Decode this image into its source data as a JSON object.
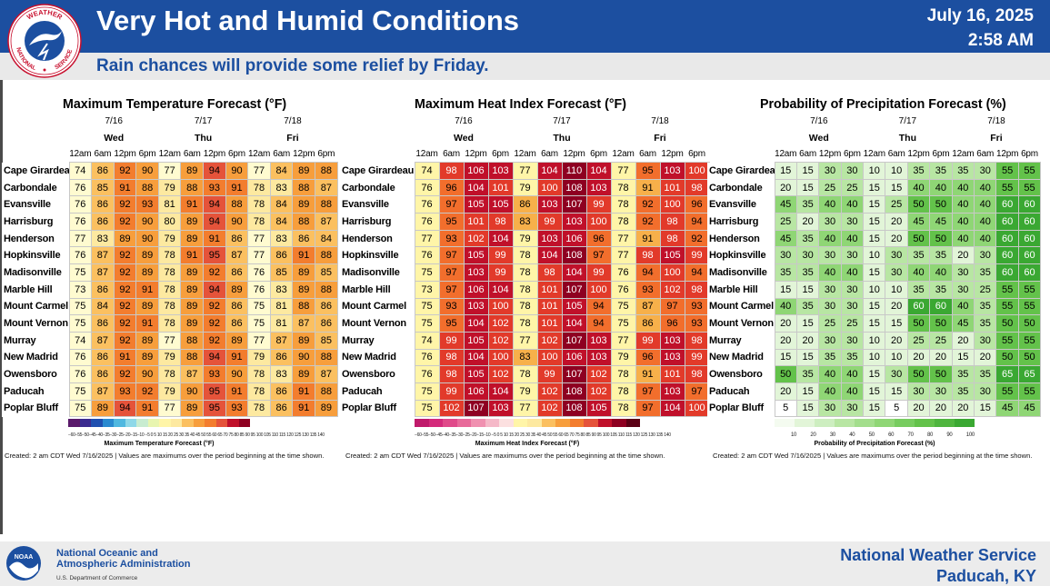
{
  "header": {
    "title": "Very Hot and Humid Conditions",
    "date": "July 16, 2025",
    "time": "2:58 AM",
    "subtitle": "Rain chances will provide some relief by Friday."
  },
  "logo": {
    "top_text": "WEATHER",
    "left_text": "NATIONAL",
    "right_text": "SERVICE"
  },
  "days": [
    {
      "date": "7/16",
      "weekday": "Wed"
    },
    {
      "date": "7/17",
      "weekday": "Thu"
    },
    {
      "date": "7/18",
      "weekday": "Fri"
    }
  ],
  "hours": [
    "12am",
    "6am",
    "12pm",
    "6pm"
  ],
  "cities": [
    "Cape Girardeau",
    "Carbondale",
    "Evansville",
    "Harrisburg",
    "Henderson",
    "Hopkinsville",
    "Madisonville",
    "Marble Hill",
    "Mount Carmel",
    "Mount Vernon",
    "Murray",
    "New Madrid",
    "Owensboro",
    "Paducah",
    "Poplar Bluff"
  ],
  "panels": {
    "temp": {
      "title": "Maximum Temperature Forecast (°F)",
      "colorbar_label": "Maximum Temperature Forecast (°F)",
      "colorbar_ticks": "−60−55−50−45−40−35−30−25−20−15−10 −5 0 5 10 15 20 25 30 35 40 45 50 55 60 65 70 75 80 85 90 95 100 105 110 115 120 125 130 135 140",
      "values": [
        [
          74,
          86,
          92,
          90,
          77,
          89,
          94,
          90,
          77,
          84,
          89,
          88
        ],
        [
          76,
          85,
          91,
          88,
          79,
          88,
          93,
          91,
          78,
          83,
          88,
          87
        ],
        [
          76,
          86,
          92,
          93,
          81,
          91,
          94,
          88,
          78,
          84,
          89,
          88
        ],
        [
          76,
          86,
          92,
          90,
          80,
          89,
          94,
          90,
          78,
          84,
          88,
          87
        ],
        [
          77,
          83,
          89,
          90,
          79,
          89,
          91,
          86,
          77,
          83,
          86,
          84
        ],
        [
          76,
          87,
          92,
          89,
          78,
          91,
          95,
          87,
          77,
          86,
          91,
          88
        ],
        [
          75,
          87,
          92,
          89,
          78,
          89,
          92,
          86,
          76,
          85,
          89,
          85
        ],
        [
          73,
          86,
          92,
          91,
          78,
          89,
          94,
          89,
          76,
          83,
          89,
          88
        ],
        [
          75,
          84,
          92,
          89,
          78,
          89,
          92,
          86,
          75,
          81,
          88,
          86
        ],
        [
          75,
          86,
          92,
          91,
          78,
          89,
          92,
          86,
          75,
          81,
          87,
          86
        ],
        [
          74,
          87,
          92,
          89,
          77,
          88,
          92,
          89,
          77,
          87,
          89,
          85
        ],
        [
          76,
          86,
          91,
          89,
          79,
          88,
          94,
          91,
          79,
          86,
          90,
          88
        ],
        [
          76,
          86,
          92,
          90,
          78,
          87,
          93,
          90,
          78,
          83,
          89,
          87
        ],
        [
          75,
          87,
          93,
          92,
          79,
          90,
          95,
          91,
          78,
          86,
          91,
          88
        ],
        [
          75,
          89,
          94,
          91,
          77,
          89,
          95,
          93,
          78,
          86,
          91,
          89
        ]
      ]
    },
    "heat": {
      "title": "Maximum Heat Index Forecast (°F)",
      "colorbar_label": "Maximum Heat Index Forecast (°F)",
      "colorbar_ticks": "−60−55−50−45−40−35−30−25−20−15−10 −5 0 5 10 15 20 25 30 35 40 45 50 55 60 65 70 75 80 85 90 95 100 105 110 115 120 125 130 135 140",
      "values": [
        [
          74,
          98,
          106,
          103,
          77,
          104,
          110,
          104,
          77,
          95,
          103,
          100
        ],
        [
          76,
          96,
          104,
          101,
          79,
          100,
          108,
          103,
          78,
          91,
          101,
          98
        ],
        [
          76,
          97,
          105,
          105,
          86,
          103,
          107,
          99,
          78,
          92,
          100,
          96
        ],
        [
          76,
          95,
          101,
          98,
          83,
          99,
          103,
          100,
          78,
          92,
          98,
          94
        ],
        [
          77,
          93,
          102,
          104,
          79,
          103,
          106,
          96,
          77,
          91,
          98,
          92
        ],
        [
          76,
          97,
          105,
          99,
          78,
          104,
          108,
          97,
          77,
          98,
          105,
          99
        ],
        [
          75,
          97,
          103,
          99,
          78,
          98,
          104,
          99,
          76,
          94,
          100,
          94
        ],
        [
          73,
          97,
          106,
          104,
          78,
          101,
          107,
          100,
          76,
          93,
          102,
          98
        ],
        [
          75,
          93,
          103,
          100,
          78,
          101,
          105,
          94,
          75,
          87,
          97,
          93
        ],
        [
          75,
          95,
          104,
          102,
          78,
          101,
          104,
          94,
          75,
          86,
          96,
          93
        ],
        [
          74,
          99,
          105,
          102,
          77,
          102,
          107,
          103,
          77,
          99,
          103,
          98
        ],
        [
          76,
          98,
          104,
          100,
          83,
          100,
          106,
          103,
          79,
          96,
          103,
          99
        ],
        [
          76,
          98,
          105,
          102,
          78,
          99,
          107,
          102,
          78,
          91,
          101,
          98
        ],
        [
          75,
          99,
          106,
          104,
          79,
          102,
          108,
          102,
          78,
          97,
          103,
          97
        ],
        [
          75,
          102,
          107,
          103,
          77,
          102,
          108,
          105,
          78,
          97,
          104,
          100
        ]
      ]
    },
    "pop": {
      "title": "Probability of Precipitation Forecast (%)",
      "colorbar_label": "Probability of Precipitation Forecast (%)",
      "colorbar_ticks": [
        "10",
        "20",
        "30",
        "40",
        "50",
        "60",
        "70",
        "80",
        "90",
        "100"
      ],
      "values": [
        [
          15,
          15,
          30,
          30,
          10,
          10,
          35,
          35,
          35,
          30,
          55,
          55
        ],
        [
          20,
          15,
          25,
          25,
          15,
          15,
          40,
          40,
          40,
          40,
          55,
          55
        ],
        [
          45,
          35,
          40,
          40,
          15,
          25,
          50,
          50,
          40,
          40,
          60,
          60
        ],
        [
          25,
          20,
          30,
          30,
          15,
          20,
          45,
          45,
          40,
          40,
          60,
          60
        ],
        [
          45,
          35,
          40,
          40,
          15,
          20,
          50,
          50,
          40,
          40,
          60,
          60
        ],
        [
          30,
          30,
          30,
          30,
          10,
          30,
          35,
          35,
          20,
          30,
          60,
          60
        ],
        [
          35,
          35,
          40,
          40,
          15,
          30,
          40,
          40,
          30,
          35,
          60,
          60
        ],
        [
          15,
          15,
          30,
          30,
          10,
          10,
          35,
          35,
          30,
          25,
          55,
          55
        ],
        [
          40,
          35,
          30,
          30,
          15,
          20,
          60,
          60,
          40,
          35,
          55,
          55
        ],
        [
          20,
          15,
          25,
          25,
          15,
          15,
          50,
          50,
          45,
          35,
          50,
          50
        ],
        [
          20,
          20,
          30,
          30,
          10,
          20,
          25,
          25,
          20,
          30,
          55,
          55
        ],
        [
          15,
          15,
          35,
          35,
          10,
          10,
          20,
          20,
          15,
          20,
          50,
          50
        ],
        [
          50,
          35,
          40,
          40,
          15,
          30,
          50,
          50,
          35,
          35,
          65,
          65
        ],
        [
          20,
          15,
          40,
          40,
          15,
          15,
          30,
          30,
          35,
          30,
          55,
          55
        ],
        [
          5,
          15,
          30,
          30,
          15,
          5,
          20,
          20,
          20,
          15,
          45,
          45
        ]
      ]
    }
  },
  "created_text": "Created: 2 am CDT Wed 7/16/2025  |  Values are maximums over the period beginning at the time shown.",
  "footer": {
    "noaa_line1": "National Oceanic and",
    "noaa_line2": "Atmospheric Administration",
    "noaa_line3": "U.S. Department of Commerce",
    "noaa_logo_text": "NOAA",
    "nws_line1": "National Weather Service",
    "nws_line2": "Paducah, KY"
  },
  "colors": {
    "header_blue": "#1c4fa0",
    "temp_scale": [
      "#fffbd0",
      "#fde9a0",
      "#fbc060",
      "#f79e3c",
      "#f37d2e",
      "#e5533a"
    ],
    "heat_scale": [
      "#fff5a8",
      "#f7b04a",
      "#f26e2c",
      "#e23a2a",
      "#c0102a",
      "#8e0021"
    ],
    "pop_scale": [
      "#ffffff",
      "#e2f5d8",
      "#b8e6a3",
      "#8fd675",
      "#63c24a",
      "#3aa832"
    ]
  }
}
